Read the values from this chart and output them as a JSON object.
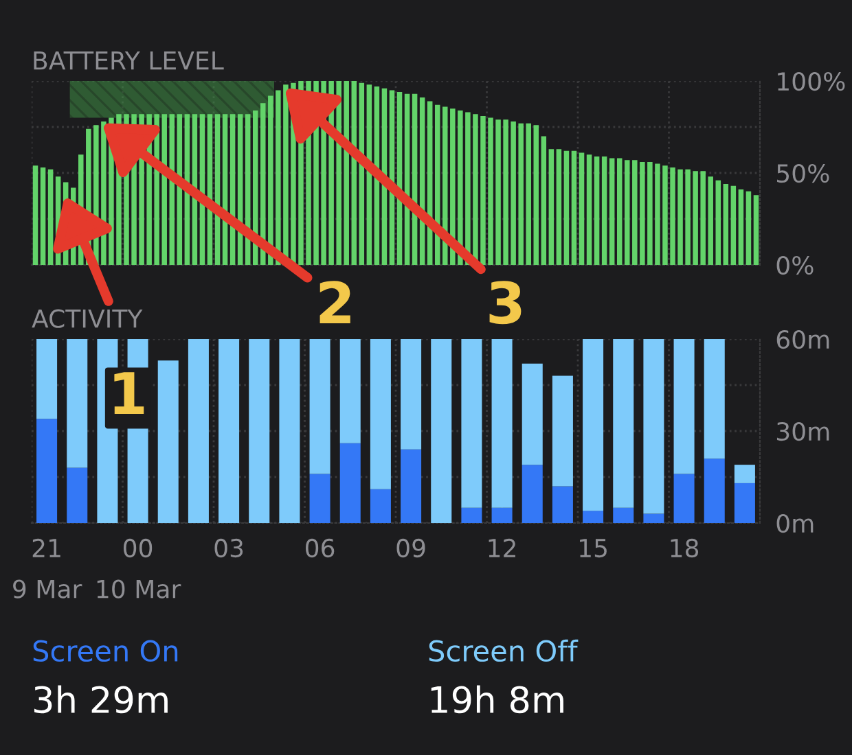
{
  "chart_data": [
    {
      "type": "bar",
      "title": "BATTERY LEVEL",
      "color": "#63d46a",
      "categories": [
        null,
        null,
        null,
        null,
        null,
        null,
        null,
        null,
        null,
        null,
        null,
        null,
        null,
        null,
        null,
        null,
        null,
        null,
        null,
        null,
        null,
        null,
        null,
        null,
        null,
        null,
        null,
        null,
        null,
        null,
        null,
        null,
        null,
        null,
        null,
        null,
        null,
        null,
        null,
        null,
        null,
        null,
        null,
        null,
        null,
        null,
        null,
        null,
        null,
        null,
        null,
        null,
        null,
        null,
        null,
        null,
        null,
        null,
        null,
        null,
        null,
        null,
        null,
        null,
        null,
        null,
        null,
        null,
        null,
        null,
        null,
        null,
        null,
        null,
        null,
        null,
        null,
        null,
        null,
        null,
        null,
        null,
        null,
        null,
        null,
        null,
        null,
        null,
        null,
        null,
        null,
        null,
        null,
        null,
        null,
        null
      ],
      "values": [
        54,
        53,
        52,
        48,
        45,
        42,
        60,
        74,
        76,
        78,
        80,
        82,
        82,
        82,
        82,
        82,
        82,
        82,
        82,
        82,
        82,
        82,
        82,
        82,
        82,
        82,
        82,
        82,
        82,
        84,
        88,
        92,
        95,
        98,
        99,
        100,
        100,
        100,
        100,
        100,
        100,
        100,
        100,
        99,
        98,
        97,
        96,
        95,
        94,
        93,
        93,
        91,
        89,
        87,
        86,
        85,
        84,
        83,
        82,
        81,
        80,
        79,
        79,
        78,
        77,
        77,
        76,
        70,
        63,
        63,
        62,
        62,
        61,
        60,
        59,
        59,
        58,
        58,
        57,
        57,
        56,
        56,
        55,
        54,
        53,
        52,
        52,
        51,
        51,
        48,
        46,
        44,
        43,
        41,
        40,
        38
      ],
      "ylim": [
        0,
        100
      ],
      "yticks": [
        {
          "value": 0,
          "label": "0%"
        },
        {
          "value": 25,
          "label": null
        },
        {
          "value": 50,
          "label": "50%"
        },
        {
          "value": 75,
          "label": null
        },
        {
          "value": 100,
          "label": "100%"
        }
      ],
      "tick_labels": "y",
      "grid": true,
      "annotations": [
        "1",
        "2",
        "3"
      ]
    },
    {
      "type": "bar",
      "title": "ACTIVITY",
      "stacked": true,
      "categories": [
        "21\n9 Mar",
        null,
        null,
        "00\n10 Mar",
        null,
        null,
        "03",
        null,
        null,
        "06",
        null,
        null,
        "09",
        null,
        null,
        "12",
        null,
        null,
        "15",
        null,
        null,
        "18",
        null,
        null
      ],
      "series": [
        {
          "name": "Screen On",
          "color": "#3478f6",
          "values": [
            34,
            18,
            0,
            0,
            0,
            0,
            0,
            0,
            0,
            16,
            26,
            11,
            24,
            0,
            5,
            5,
            19,
            12,
            4,
            5,
            3,
            16,
            21,
            13
          ]
        },
        {
          "name": "Screen Off",
          "color": "#7ecbfb",
          "values": [
            26,
            42,
            60,
            60,
            53,
            60,
            60,
            60,
            60,
            44,
            34,
            49,
            36,
            60,
            55,
            55,
            33,
            36,
            56,
            55,
            57,
            44,
            39,
            6
          ]
        }
      ],
      "ylim": [
        0,
        60
      ],
      "yticks": [
        {
          "value": 0,
          "label": "0m"
        },
        {
          "value": 15,
          "label": null
        },
        {
          "value": 30,
          "label": "30m"
        },
        {
          "value": 45,
          "label": null
        },
        {
          "value": 60,
          "label": "60m"
        }
      ],
      "grid": true,
      "legend": "bottom",
      "annotations": [
        "3h 29m",
        "19h 8m"
      ]
    }
  ]
}
